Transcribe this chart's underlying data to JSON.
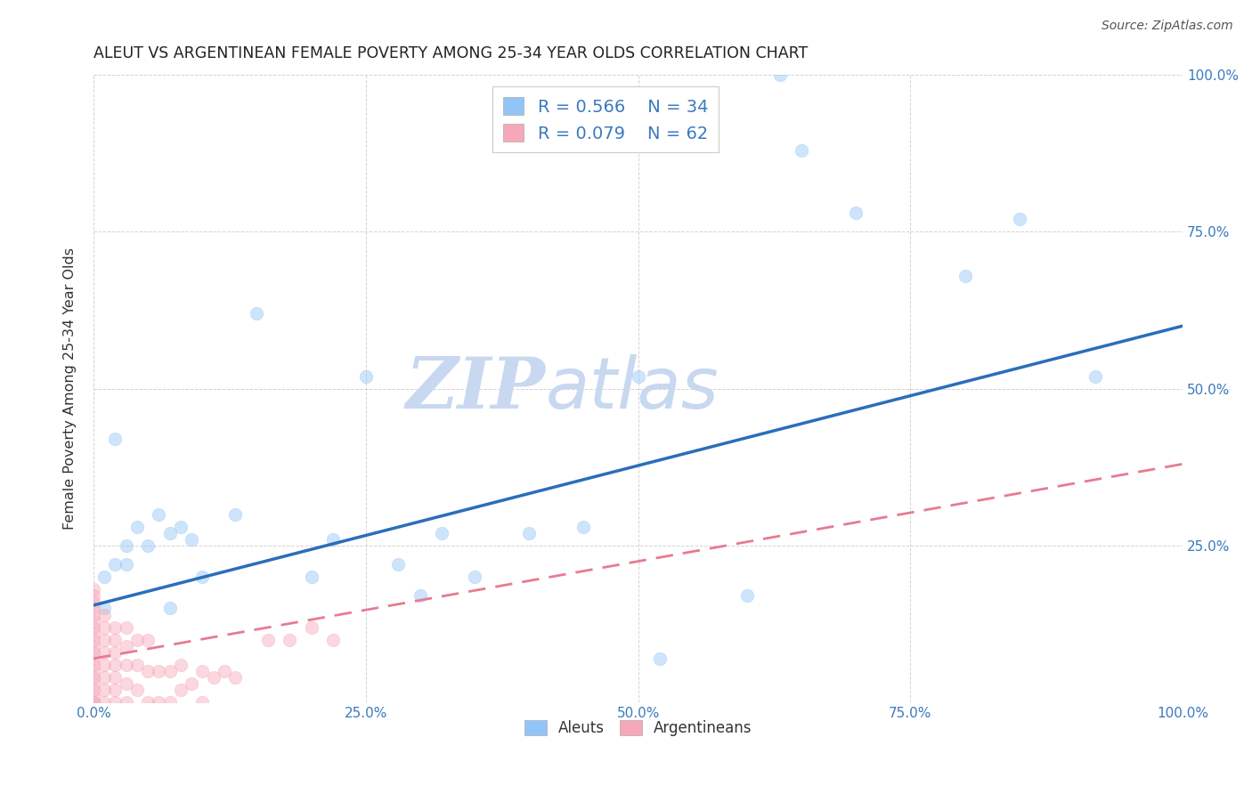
{
  "title": "ALEUT VS ARGENTINEAN FEMALE POVERTY AMONG 25-34 YEAR OLDS CORRELATION CHART",
  "source": "Source: ZipAtlas.com",
  "xlabel": "",
  "ylabel": "Female Poverty Among 25-34 Year Olds",
  "aleuts_R": 0.566,
  "aleuts_N": 34,
  "argentineans_R": 0.079,
  "argentineans_N": 62,
  "aleuts_color": "#92c5f7",
  "argentineans_color": "#f7a8b8",
  "aleuts_line_color": "#2a6ebb",
  "argentineans_line_color": "#e87a90",
  "watermark_color": "#c8d8f0",
  "background_color": "#ffffff",
  "grid_color": "#c8c8c8",
  "aleuts_x": [
    0.01,
    0.01,
    0.02,
    0.02,
    0.03,
    0.03,
    0.04,
    0.05,
    0.06,
    0.07,
    0.07,
    0.08,
    0.09,
    0.1,
    0.13,
    0.15,
    0.2,
    0.22,
    0.25,
    0.28,
    0.3,
    0.32,
    0.35,
    0.4,
    0.45,
    0.5,
    0.52,
    0.6,
    0.63,
    0.65,
    0.7,
    0.8,
    0.85,
    0.92
  ],
  "aleuts_y": [
    0.15,
    0.2,
    0.22,
    0.42,
    0.25,
    0.22,
    0.28,
    0.25,
    0.3,
    0.27,
    0.15,
    0.28,
    0.26,
    0.2,
    0.3,
    0.62,
    0.2,
    0.26,
    0.52,
    0.22,
    0.17,
    0.27,
    0.2,
    0.27,
    0.28,
    0.52,
    0.07,
    0.17,
    1.0,
    0.88,
    0.78,
    0.68,
    0.77,
    0.52
  ],
  "argentineans_x": [
    0.0,
    0.0,
    0.0,
    0.0,
    0.0,
    0.0,
    0.0,
    0.0,
    0.0,
    0.0,
    0.0,
    0.0,
    0.0,
    0.0,
    0.0,
    0.0,
    0.0,
    0.0,
    0.0,
    0.0,
    0.01,
    0.01,
    0.01,
    0.01,
    0.01,
    0.01,
    0.01,
    0.01,
    0.02,
    0.02,
    0.02,
    0.02,
    0.02,
    0.02,
    0.02,
    0.03,
    0.03,
    0.03,
    0.03,
    0.03,
    0.04,
    0.04,
    0.04,
    0.05,
    0.05,
    0.05,
    0.06,
    0.06,
    0.07,
    0.07,
    0.08,
    0.08,
    0.09,
    0.1,
    0.1,
    0.11,
    0.12,
    0.13,
    0.16,
    0.18,
    0.2,
    0.22
  ],
  "argentineans_y": [
    0.0,
    0.0,
    0.01,
    0.02,
    0.03,
    0.04,
    0.05,
    0.06,
    0.07,
    0.08,
    0.09,
    0.1,
    0.11,
    0.12,
    0.13,
    0.14,
    0.15,
    0.16,
    0.17,
    0.18,
    0.0,
    0.02,
    0.04,
    0.06,
    0.08,
    0.1,
    0.12,
    0.14,
    0.0,
    0.02,
    0.04,
    0.06,
    0.08,
    0.1,
    0.12,
    0.0,
    0.03,
    0.06,
    0.09,
    0.12,
    0.02,
    0.06,
    0.1,
    0.0,
    0.05,
    0.1,
    0.0,
    0.05,
    0.0,
    0.05,
    0.02,
    0.06,
    0.03,
    0.0,
    0.05,
    0.04,
    0.05,
    0.04,
    0.1,
    0.1,
    0.12,
    0.1
  ],
  "aleuts_line_x0": 0.0,
  "aleuts_line_y0": 0.155,
  "aleuts_line_x1": 1.0,
  "aleuts_line_y1": 0.6,
  "argentineans_line_x0": 0.0,
  "argentineans_line_y0": 0.07,
  "argentineans_line_x1": 1.0,
  "argentineans_line_y1": 0.38,
  "xlim": [
    0.0,
    1.0
  ],
  "ylim": [
    0.0,
    1.0
  ],
  "xticks": [
    0.0,
    0.25,
    0.5,
    0.75,
    1.0
  ],
  "xticklabels": [
    "0.0%",
    "25.0%",
    "50.0%",
    "75.0%",
    "100.0%"
  ],
  "yticks": [
    0.0,
    0.25,
    0.5,
    0.75,
    1.0
  ],
  "right_yticklabels": [
    "",
    "25.0%",
    "50.0%",
    "75.0%",
    "100.0%"
  ],
  "legend_label_aleuts": "Aleuts",
  "legend_label_argentineans": "Argentineans",
  "marker_size": 110,
  "marker_alpha": 0.45,
  "marker_lw": 0.5
}
